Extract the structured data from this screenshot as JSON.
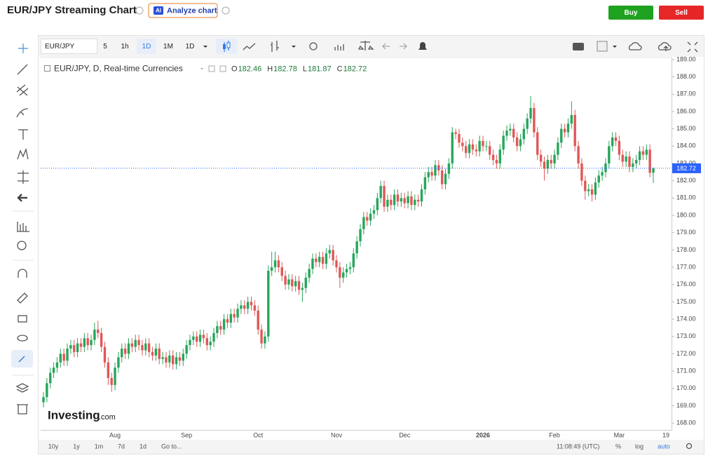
{
  "header": {
    "title": "EUR/JPY Streaming Chart",
    "ai_badge": "AI",
    "analyze_button": "Analyze chart",
    "buy": "Buy",
    "sell": "Sell"
  },
  "toolbar": {
    "symbol": "EUR/JPY",
    "intervals": [
      "5",
      "1h",
      "1D",
      "1M",
      "1D"
    ]
  },
  "legend": {
    "symbol_line": "EUR/JPY, D, Real-time Currencies",
    "ohlc_letters": [
      "O",
      "H",
      "L",
      "C"
    ]
  },
  "watermark": {
    "brand": "Investing",
    "suffix": ".com"
  },
  "bottom_bar": {
    "ranges": [
      "10y",
      "1y",
      "1m",
      "7d",
      "1d"
    ],
    "goto": "Go to...",
    "time": "11:08:49 (UTC)",
    "percent": "%",
    "log": "log",
    "auto": "auto"
  },
  "chart_data": {
    "type": "candlestick",
    "up_color": "#26a65b",
    "down_color": "#e05757",
    "price_line_color": "#2962ff",
    "grid": false,
    "log_scale": false,
    "categories": [
      null,
      null,
      null,
      null,
      null,
      null,
      null,
      null,
      null,
      null,
      null,
      null,
      null,
      null,
      null,
      null,
      null,
      null,
      null,
      null,
      null,
      "Aug",
      null,
      null,
      null,
      null,
      null,
      null,
      null,
      null,
      null,
      null,
      null,
      null,
      null,
      null,
      null,
      null,
      null,
      null,
      null,
      null,
      "Sep",
      null,
      null,
      null,
      null,
      null,
      null,
      null,
      null,
      null,
      null,
      null,
      null,
      null,
      null,
      null,
      null,
      null,
      null,
      null,
      null,
      "Oct",
      null,
      null,
      null,
      null,
      null,
      null,
      null,
      null,
      null,
      null,
      null,
      null,
      null,
      null,
      null,
      null,
      null,
      null,
      null,
      null,
      null,
      null,
      "Nov",
      null,
      null,
      null,
      null,
      null,
      null,
      null,
      null,
      null,
      null,
      null,
      null,
      null,
      null,
      null,
      null,
      null,
      null,
      null,
      "Dec",
      null,
      null,
      null,
      null,
      null,
      null,
      null,
      null,
      null,
      null,
      null,
      null,
      null,
      null,
      null,
      null,
      null,
      null,
      null,
      null,
      null,
      null,
      "2026",
      null,
      null,
      null,
      null,
      null,
      null,
      null,
      null,
      null,
      null,
      null,
      null,
      null,
      null,
      null,
      null,
      null,
      null,
      null,
      null,
      "Feb",
      null,
      null,
      null,
      null,
      null,
      null,
      null,
      null,
      null,
      null,
      null,
      null,
      null,
      null,
      null,
      null,
      null,
      null,
      "Mar",
      null,
      null,
      null,
      null,
      null,
      null,
      null,
      null,
      null,
      null
    ],
    "x_end_label": "19",
    "open": [
      169.2,
      169.5,
      170.3,
      170.9,
      171.2,
      171.5,
      172.0,
      171.6,
      172.3,
      172.5,
      172.1,
      172.6,
      172.4,
      172.9,
      172.5,
      172.8,
      173.4,
      173.2,
      172.4,
      171.5,
      170.6,
      170.2,
      171.2,
      171.8,
      172.3,
      172.0,
      172.6,
      172.4,
      172.8,
      172.5,
      172.2,
      172.6,
      172.1,
      171.9,
      172.3,
      171.7,
      171.8,
      171.5,
      171.9,
      171.4,
      171.8,
      171.6,
      172.0,
      172.5,
      172.8,
      173.0,
      172.7,
      173.1,
      172.9,
      172.5,
      172.7,
      173.2,
      173.6,
      173.4,
      174.0,
      173.8,
      174.3,
      174.1,
      174.6,
      174.8,
      174.6,
      175.0,
      174.8,
      174.5,
      173.4,
      172.6,
      173.0,
      176.8,
      177.0,
      177.4,
      177.0,
      176.5,
      176.0,
      176.3,
      175.9,
      176.2,
      175.7,
      175.8,
      176.4,
      176.9,
      177.5,
      177.3,
      177.6,
      177.2,
      177.8,
      178.0,
      177.4,
      177.0,
      176.4,
      176.7,
      176.9,
      177.0,
      177.8,
      178.5,
      179.2,
      179.9,
      179.7,
      180.1,
      180.3,
      181.0,
      181.7,
      180.5,
      180.9,
      180.6,
      181.2,
      180.8,
      181.0,
      180.7,
      181.1,
      180.6,
      180.9,
      180.8,
      181.5,
      182.2,
      182.5,
      182.3,
      182.9,
      182.6,
      181.8,
      182.4,
      183.0,
      184.8,
      184.7,
      184.2,
      184.0,
      183.6,
      184.1,
      183.8,
      183.7,
      184.3,
      184.0,
      184.0,
      183.5,
      183.2,
      183.0,
      183.8,
      184.6,
      184.9,
      185.0,
      184.5,
      184.0,
      184.4,
      185.0,
      185.6,
      186.2,
      184.8,
      183.5,
      183.1,
      182.7,
      183.2,
      183.0,
      183.5,
      184.2,
      185.0,
      184.8,
      185.3,
      185.8,
      184.0,
      183.0,
      182.0,
      181.4,
      181.5,
      181.2,
      181.9,
      182.3,
      182.5,
      183.0,
      184.0,
      184.5,
      184.3,
      183.5,
      183.1,
      183.4,
      182.8,
      183.0,
      183.2,
      183.7,
      183.5,
      183.8,
      182.46
    ],
    "high": [
      169.8,
      170.6,
      171.2,
      171.5,
      171.8,
      172.3,
      172.3,
      172.6,
      172.8,
      172.8,
      172.9,
      172.9,
      173.2,
      173.2,
      173.1,
      173.8,
      173.9,
      173.5,
      172.7,
      171.8,
      170.9,
      171.5,
      172.1,
      172.6,
      172.6,
      172.9,
      172.9,
      173.1,
      173.1,
      172.8,
      172.9,
      172.9,
      172.4,
      172.6,
      172.6,
      172.1,
      172.1,
      172.2,
      172.2,
      172.1,
      172.1,
      172.3,
      172.8,
      173.1,
      173.3,
      173.3,
      173.4,
      173.4,
      173.2,
      173.0,
      173.5,
      173.9,
      173.9,
      174.3,
      174.3,
      174.6,
      174.6,
      174.9,
      175.1,
      175.1,
      175.3,
      175.3,
      175.1,
      174.8,
      173.7,
      173.3,
      177.1,
      177.9,
      177.9,
      177.7,
      177.3,
      176.8,
      176.6,
      176.6,
      176.5,
      176.5,
      176.1,
      176.7,
      177.2,
      177.8,
      177.8,
      177.9,
      177.9,
      178.1,
      178.3,
      178.3,
      177.7,
      177.3,
      177.0,
      177.2,
      177.3,
      178.1,
      178.8,
      179.5,
      180.2,
      180.2,
      180.4,
      180.6,
      181.3,
      182.0,
      182.0,
      181.2,
      181.2,
      181.5,
      181.5,
      181.3,
      181.3,
      181.4,
      181.4,
      181.2,
      181.2,
      181.8,
      182.5,
      182.8,
      182.8,
      183.2,
      183.2,
      182.9,
      182.7,
      183.3,
      185.1,
      185.0,
      185.0,
      184.5,
      184.3,
      184.4,
      184.4,
      184.1,
      184.6,
      184.6,
      184.3,
      184.3,
      183.8,
      183.5,
      184.1,
      184.9,
      185.2,
      185.3,
      185.3,
      184.8,
      184.7,
      185.3,
      185.9,
      186.9,
      186.5,
      185.1,
      183.8,
      183.4,
      183.5,
      183.5,
      183.8,
      184.5,
      185.3,
      185.3,
      185.6,
      186.6,
      186.1,
      184.3,
      183.3,
      182.3,
      181.8,
      181.8,
      182.2,
      182.6,
      182.8,
      183.3,
      184.3,
      184.8,
      184.8,
      184.6,
      183.8,
      183.7,
      183.7,
      183.3,
      183.5,
      184.0,
      184.0,
      184.1,
      184.1,
      182.78
    ],
    "low": [
      168.9,
      169.2,
      170.0,
      170.6,
      170.9,
      171.2,
      171.3,
      171.3,
      172.0,
      171.8,
      171.8,
      172.1,
      172.1,
      172.2,
      172.2,
      172.5,
      172.9,
      172.1,
      171.2,
      170.2,
      169.8,
      169.9,
      170.9,
      171.5,
      171.7,
      171.7,
      172.1,
      172.1,
      172.2,
      171.9,
      171.9,
      171.8,
      171.6,
      171.6,
      171.4,
      171.4,
      171.2,
      171.2,
      171.1,
      171.1,
      171.3,
      171.3,
      171.7,
      172.2,
      172.5,
      172.4,
      172.4,
      172.6,
      172.2,
      172.2,
      172.4,
      172.9,
      173.1,
      173.1,
      173.5,
      173.5,
      173.8,
      173.8,
      174.3,
      174.3,
      174.3,
      174.5,
      174.2,
      173.1,
      172.3,
      172.3,
      172.7,
      176.5,
      176.7,
      176.7,
      176.2,
      175.7,
      175.7,
      175.6,
      175.6,
      175.4,
      175.0,
      175.5,
      176.1,
      176.6,
      177.0,
      177.0,
      176.9,
      176.9,
      177.5,
      177.1,
      176.7,
      175.8,
      176.1,
      176.4,
      176.6,
      176.7,
      177.5,
      178.2,
      178.9,
      179.4,
      179.4,
      179.8,
      180.0,
      180.7,
      180.2,
      180.2,
      180.3,
      180.3,
      180.5,
      180.5,
      180.4,
      180.4,
      180.3,
      180.3,
      180.5,
      180.5,
      181.2,
      181.9,
      182.0,
      182.0,
      182.3,
      181.5,
      181.5,
      182.1,
      182.7,
      184.4,
      183.9,
      183.7,
      183.3,
      183.3,
      183.5,
      183.4,
      183.4,
      183.7,
      183.7,
      183.2,
      182.9,
      182.7,
      182.7,
      183.5,
      184.3,
      184.6,
      184.2,
      183.7,
      183.7,
      184.1,
      184.7,
      185.3,
      184.5,
      183.2,
      182.8,
      182.0,
      182.4,
      182.7,
      182.7,
      183.2,
      183.9,
      184.5,
      184.5,
      185.0,
      183.7,
      182.7,
      181.7,
      180.9,
      181.1,
      180.8,
      180.9,
      181.6,
      182.0,
      182.2,
      182.7,
      183.7,
      184.0,
      183.2,
      182.8,
      182.8,
      182.5,
      182.5,
      182.7,
      182.9,
      183.2,
      183.2,
      182.2,
      181.87
    ],
    "close": [
      169.5,
      170.3,
      170.9,
      171.2,
      171.5,
      172.0,
      171.6,
      172.3,
      172.5,
      172.1,
      172.6,
      172.4,
      172.9,
      172.5,
      172.8,
      173.4,
      173.2,
      172.4,
      171.5,
      170.6,
      170.2,
      171.2,
      171.8,
      172.3,
      172.0,
      172.6,
      172.4,
      172.8,
      172.5,
      172.2,
      172.6,
      172.1,
      171.9,
      172.3,
      171.7,
      171.8,
      171.5,
      171.9,
      171.4,
      171.8,
      171.6,
      172.0,
      172.5,
      172.8,
      173.0,
      172.7,
      173.1,
      172.9,
      172.5,
      172.7,
      173.2,
      173.6,
      173.4,
      174.0,
      173.8,
      174.3,
      174.1,
      174.6,
      174.8,
      174.6,
      175.0,
      174.8,
      174.5,
      173.4,
      172.6,
      173.0,
      176.8,
      177.0,
      177.4,
      177.0,
      176.5,
      176.0,
      176.3,
      175.9,
      176.2,
      175.7,
      175.8,
      176.4,
      176.9,
      177.5,
      177.3,
      177.6,
      177.2,
      177.8,
      178.0,
      177.4,
      177.0,
      176.4,
      176.7,
      176.9,
      177.0,
      177.8,
      178.5,
      179.2,
      179.9,
      179.7,
      180.1,
      180.3,
      181.0,
      181.7,
      180.5,
      180.9,
      180.6,
      181.2,
      180.8,
      181.0,
      180.7,
      181.1,
      180.6,
      180.9,
      180.8,
      181.5,
      182.2,
      182.5,
      182.3,
      182.9,
      182.6,
      181.8,
      182.4,
      183.0,
      184.8,
      184.7,
      184.2,
      184.0,
      183.6,
      184.1,
      183.8,
      183.7,
      184.3,
      184.0,
      184.0,
      183.5,
      183.2,
      183.0,
      183.8,
      184.6,
      184.9,
      185.0,
      184.5,
      184.0,
      184.4,
      185.0,
      185.6,
      186.2,
      184.8,
      183.5,
      183.1,
      182.7,
      183.2,
      183.0,
      183.5,
      184.2,
      185.0,
      184.8,
      185.3,
      185.8,
      184.0,
      183.0,
      182.0,
      181.4,
      181.5,
      181.2,
      181.9,
      182.3,
      182.5,
      183.0,
      184.0,
      184.5,
      184.3,
      183.5,
      183.1,
      183.4,
      182.8,
      183.0,
      183.2,
      183.7,
      183.5,
      183.8,
      182.46,
      182.72
    ],
    "ylim": [
      167.6,
      189.12
    ],
    "yticks": [
      {
        "value": 168,
        "label": "168.00"
      },
      {
        "value": 169,
        "label": "169.00"
      },
      {
        "value": 170,
        "label": "170.00"
      },
      {
        "value": 171,
        "label": "171.00"
      },
      {
        "value": 172,
        "label": "172.00"
      },
      {
        "value": 173,
        "label": "173.00"
      },
      {
        "value": 174,
        "label": "174.00"
      },
      {
        "value": 175,
        "label": "175.00"
      },
      {
        "value": 176,
        "label": "176.00"
      },
      {
        "value": 177,
        "label": "177.00"
      },
      {
        "value": 178,
        "label": "178.00"
      },
      {
        "value": 179,
        "label": "179.00"
      },
      {
        "value": 180,
        "label": "180.00"
      },
      {
        "value": 181,
        "label": "181.00"
      },
      {
        "value": 182,
        "label": "182.00"
      },
      {
        "value": 183,
        "label": "183.00"
      },
      {
        "value": 184,
        "label": "184.00"
      },
      {
        "value": 185,
        "label": "185.00"
      },
      {
        "value": 186,
        "label": "186.00"
      },
      {
        "value": 187,
        "label": "187.00"
      },
      {
        "value": 188,
        "label": "188.00"
      },
      {
        "value": 189,
        "label": "189.00"
      }
    ]
  }
}
